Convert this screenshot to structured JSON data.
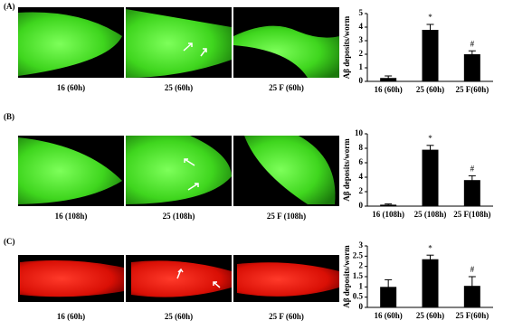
{
  "panels": [
    {
      "label": "(A)",
      "captions": [
        "16 (60h)",
        "25 (60h)",
        "25 F (60h)"
      ]
    },
    {
      "label": "(B)",
      "captions": [
        "16 (108h)",
        "25 (108h)",
        "25 F (108h)"
      ]
    },
    {
      "label": "(C)",
      "captions": [
        "16 (60h)",
        "25 (60h)",
        "25 F (60h)"
      ]
    }
  ],
  "chart_data": [
    {
      "type": "bar",
      "y_label": "Aβ deposits/worm",
      "categories": [
        "16 (60h)",
        "25 (60h)",
        "25 F(60h)"
      ],
      "values": [
        0.25,
        3.8,
        2.0
      ],
      "errors": [
        0.15,
        0.4,
        0.25
      ],
      "markers": [
        null,
        "*",
        "#"
      ],
      "color": "#000000",
      "ylim": [
        0,
        5
      ],
      "yticks": [
        0,
        1,
        2,
        3,
        4,
        5
      ]
    },
    {
      "type": "bar",
      "y_label": "Aβ deposits/worm",
      "categories": [
        "16 (108h)",
        "25 (108h)",
        "25 F(108h)"
      ],
      "values": [
        0.2,
        7.8,
        3.6
      ],
      "errors": [
        0.1,
        0.6,
        0.6
      ],
      "markers": [
        null,
        "*",
        "#"
      ],
      "color": "#000000",
      "ylim": [
        0,
        10
      ],
      "yticks": [
        0,
        2,
        4,
        6,
        8,
        10
      ]
    },
    {
      "type": "bar",
      "y_label": "Aβ deposits/worm",
      "categories": [
        "16 (60h)",
        "25 (60h)",
        "25 F(60h)"
      ],
      "values": [
        1.0,
        2.35,
        1.05
      ],
      "errors": [
        0.35,
        0.2,
        0.45
      ],
      "markers": [
        null,
        "*",
        "#"
      ],
      "color": "#000000",
      "ylim": [
        0,
        3
      ],
      "yticks": [
        0,
        0.5,
        1,
        1.5,
        2,
        2.5,
        3
      ]
    }
  ]
}
